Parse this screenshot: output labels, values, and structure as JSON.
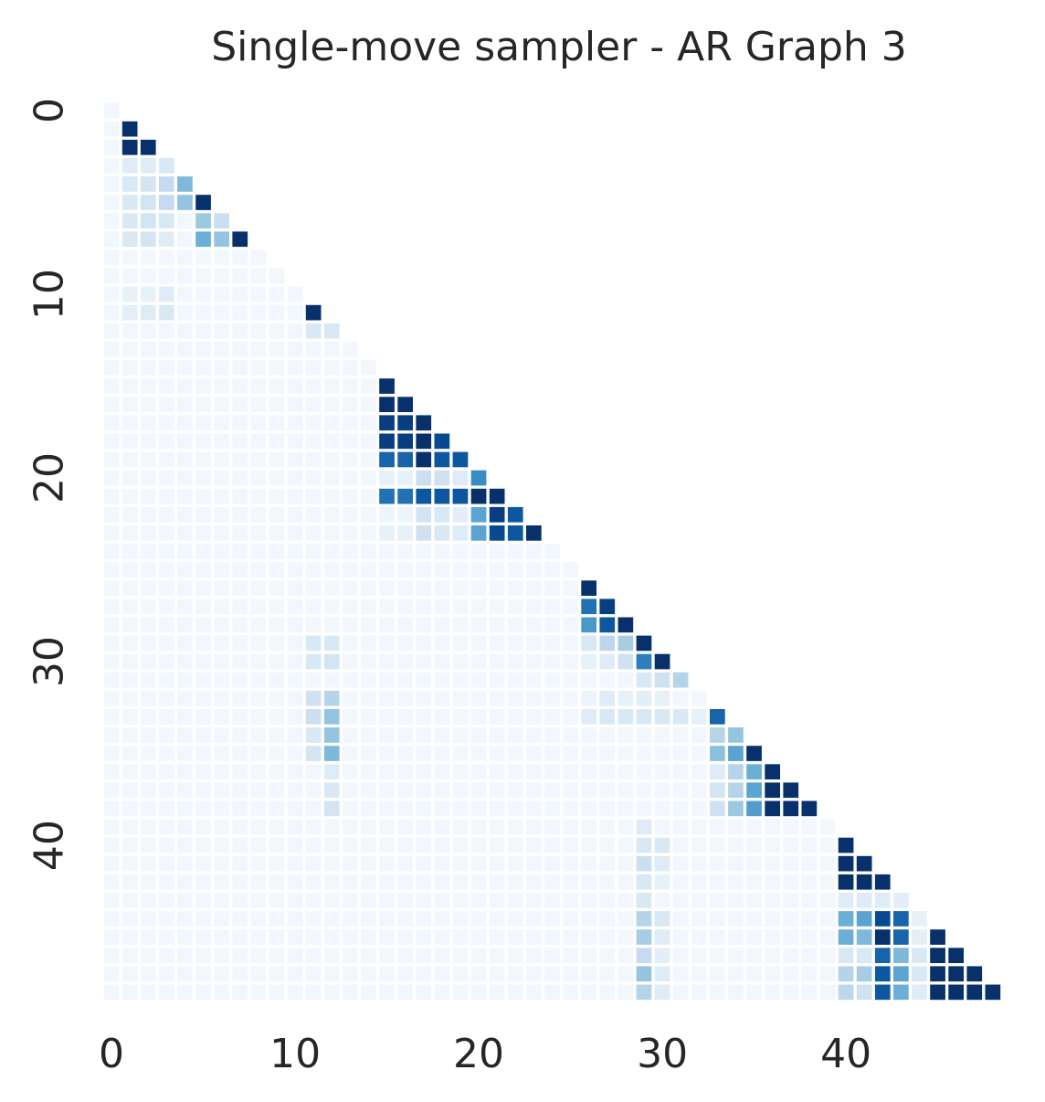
{
  "chart_data": {
    "type": "heatmap",
    "title": "Single-move sampler - AR Graph 3",
    "n": 49,
    "matrix": "lower-triangular, including diagonal",
    "colormap": "Blues",
    "x_ticks": [
      "0",
      "10",
      "20",
      "30",
      "40"
    ],
    "y_ticks": [
      "0",
      "10",
      "20",
      "30",
      "40"
    ],
    "grid": false,
    "colorbar": false,
    "base_value": 0.03,
    "rows": {
      "1": {
        "1": 1.0
      },
      "2": {
        "1": 1.0,
        "2": 1.0
      },
      "3": {
        "1": 0.12,
        "2": 0.12,
        "3": 0.15
      },
      "4": {
        "1": 0.15,
        "2": 0.18,
        "3": 0.25,
        "4": 0.45
      },
      "5": {
        "1": 0.15,
        "2": 0.18,
        "3": 0.25,
        "4": 0.4,
        "5": 1.0
      },
      "6": {
        "1": 0.15,
        "2": 0.18,
        "3": 0.15,
        "5": 0.38,
        "6": 0.22
      },
      "7": {
        "1": 0.15,
        "2": 0.18,
        "3": 0.12,
        "5": 0.5,
        "6": 0.4,
        "7": 1.0
      },
      "10": {
        "1": 0.08,
        "2": 0.08,
        "3": 0.12
      },
      "11": {
        "1": 0.1,
        "2": 0.12,
        "3": 0.15,
        "11": 1.0
      },
      "12": {
        "11": 0.15,
        "12": 0.15
      },
      "15": {
        "15": 1.0
      },
      "16": {
        "15": 1.0,
        "16": 1.0
      },
      "17": {
        "15": 0.95,
        "16": 0.95,
        "17": 1.0
      },
      "18": {
        "15": 0.95,
        "16": 0.95,
        "17": 1.0,
        "18": 0.9
      },
      "19": {
        "15": 0.8,
        "16": 0.8,
        "17": 1.0,
        "18": 0.85,
        "19": 0.85
      },
      "20": {
        "15": 0.08,
        "16": 0.08,
        "17": 0.22,
        "18": 0.2,
        "19": 0.12,
        "20": 0.65
      },
      "21": {
        "15": 0.75,
        "16": 0.75,
        "17": 0.85,
        "18": 0.85,
        "19": 0.85,
        "20": 1.0,
        "21": 1.0
      },
      "22": {
        "15": 0.05,
        "16": 0.05,
        "17": 0.18,
        "18": 0.15,
        "19": 0.1,
        "20": 0.55,
        "21": 0.95,
        "22": 0.85
      },
      "23": {
        "15": 0.08,
        "16": 0.08,
        "17": 0.2,
        "18": 0.15,
        "19": 0.12,
        "20": 0.55,
        "21": 0.9,
        "22": 0.85,
        "23": 1.0
      },
      "26": {
        "26": 1.0
      },
      "27": {
        "26": 0.75,
        "27": 0.95
      },
      "28": {
        "26": 0.6,
        "27": 0.85,
        "28": 1.0
      },
      "29": {
        "11": 0.15,
        "12": 0.15,
        "26": 0.15,
        "27": 0.28,
        "28": 0.35,
        "29": 1.0
      },
      "30": {
        "11": 0.15,
        "12": 0.18,
        "26": 0.08,
        "27": 0.12,
        "28": 0.2,
        "29": 0.7,
        "30": 1.0
      },
      "31": {
        "29": 0.15,
        "30": 0.2,
        "31": 0.3
      },
      "32": {
        "11": 0.2,
        "12": 0.3,
        "26": 0.05,
        "27": 0.12,
        "28": 0.08,
        "29": 0.1,
        "30": 0.08
      },
      "33": {
        "11": 0.22,
        "12": 0.4,
        "26": 0.12,
        "27": 0.15,
        "28": 0.15,
        "29": 0.15,
        "30": 0.15,
        "31": 0.15,
        "32": 0.08,
        "33": 0.8
      },
      "34": {
        "11": 0.15,
        "12": 0.4,
        "33": 0.3,
        "34": 0.4
      },
      "35": {
        "11": 0.18,
        "12": 0.45,
        "33": 0.42,
        "34": 0.55,
        "35": 1.0
      },
      "36": {
        "12": 0.12,
        "33": 0.12,
        "34": 0.3,
        "35": 0.5,
        "36": 1.0
      },
      "37": {
        "12": 0.15,
        "33": 0.18,
        "34": 0.3,
        "35": 0.55,
        "36": 1.0,
        "37": 1.0
      },
      "38": {
        "12": 0.18,
        "33": 0.2,
        "34": 0.38,
        "35": 0.58,
        "36": 1.0,
        "37": 1.0,
        "38": 1.0
      },
      "39": {
        "29": 0.12
      },
      "40": {
        "29": 0.15,
        "30": 0.15,
        "40": 1.0
      },
      "41": {
        "29": 0.22,
        "30": 0.12,
        "40": 1.0,
        "41": 1.0
      },
      "42": {
        "29": 0.15,
        "30": 0.08,
        "40": 1.0,
        "41": 1.0,
        "42": 1.0
      },
      "43": {
        "29": 0.15,
        "40": 0.12,
        "41": 0.12,
        "42": 0.12,
        "43": 0.1
      },
      "44": {
        "29": 0.3,
        "30": 0.15,
        "40": 0.5,
        "41": 0.55,
        "42": 0.9,
        "43": 0.8,
        "44": 0.08
      },
      "45": {
        "29": 0.35,
        "30": 0.12,
        "40": 0.5,
        "41": 0.45,
        "42": 1.0,
        "43": 0.8,
        "44": 0.1,
        "45": 1.0
      },
      "46": {
        "29": 0.25,
        "30": 0.1,
        "40": 0.15,
        "41": 0.15,
        "42": 0.8,
        "43": 0.45,
        "44": 0.15,
        "45": 1.0,
        "46": 1.0
      },
      "47": {
        "29": 0.4,
        "30": 0.12,
        "40": 0.3,
        "41": 0.35,
        "42": 0.85,
        "43": 0.55,
        "44": 0.15,
        "45": 1.0,
        "46": 1.0,
        "47": 1.0
      },
      "48": {
        "29": 0.3,
        "30": 0.12,
        "40": 0.28,
        "41": 0.2,
        "42": 0.85,
        "43": 0.5,
        "44": 0.12,
        "45": 1.0,
        "46": 1.0,
        "47": 1.0,
        "48": 1.0
      }
    }
  }
}
